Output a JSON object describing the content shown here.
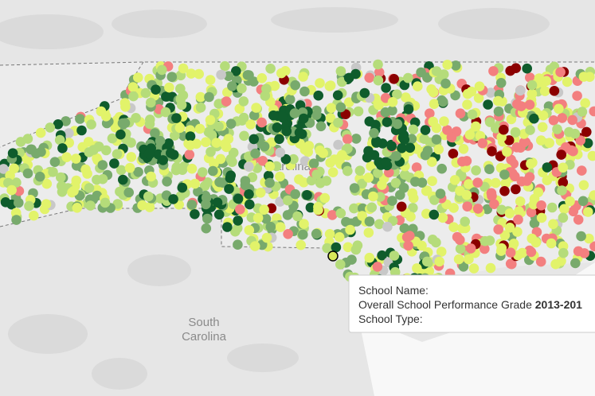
{
  "map": {
    "north_label": "Carolina",
    "south_label_line1": "South",
    "south_label_line2": "Carolina"
  },
  "tooltip": {
    "school_name": "School Name:",
    "grade_label": "Overall School Performance Grade",
    "grade_year": "2013-201",
    "school_type": "School Type:"
  }
}
